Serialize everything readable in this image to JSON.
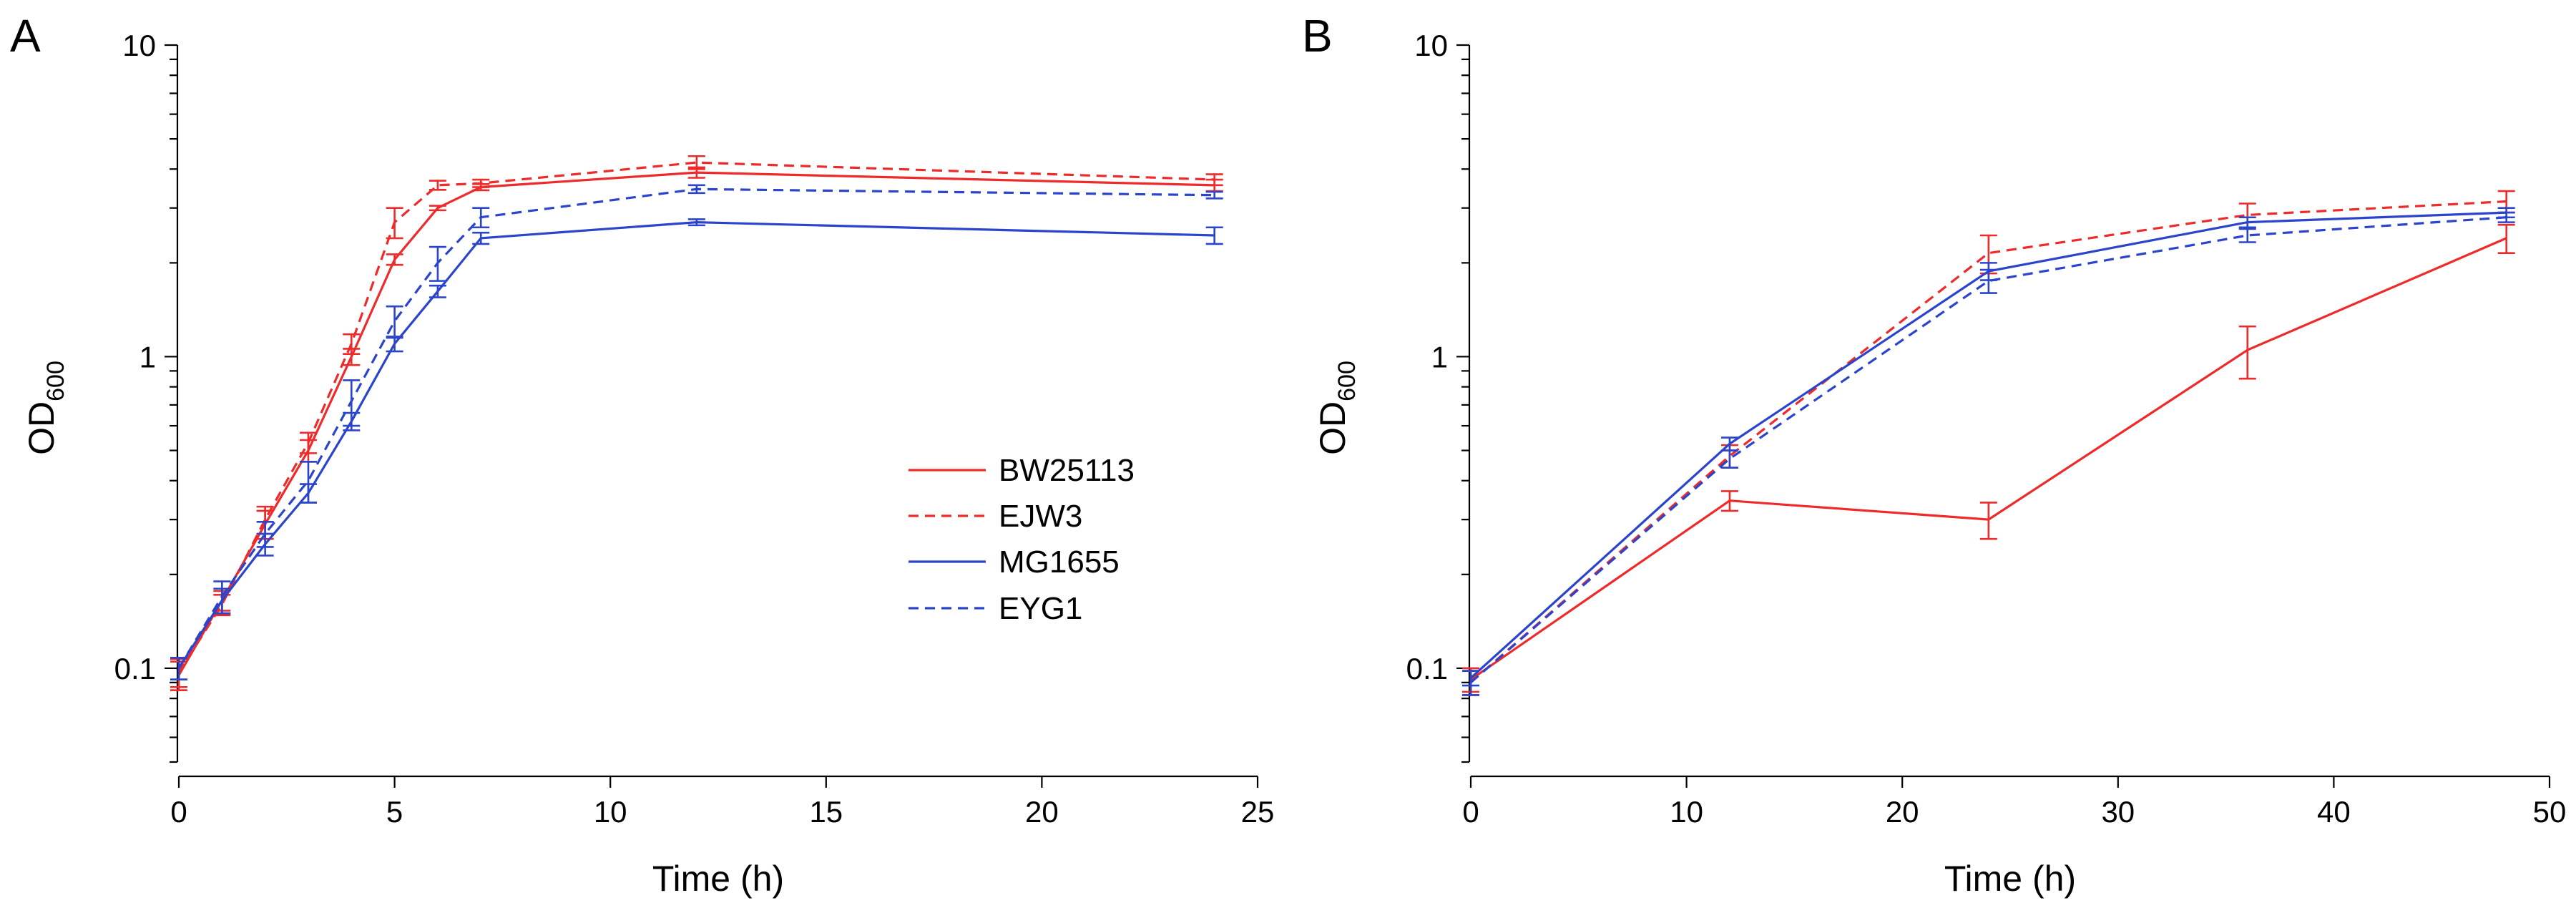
{
  "colors": {
    "red": "#ee2a2a",
    "blue": "#2a44cc"
  },
  "legend": {
    "entries": [
      {
        "name": "BW25113",
        "color": "red",
        "dash": false
      },
      {
        "name": "EJW3",
        "color": "red",
        "dash": true
      },
      {
        "name": "MG1655",
        "color": "blue",
        "dash": false
      },
      {
        "name": "EYG1",
        "color": "blue",
        "dash": true
      }
    ]
  },
  "chart_data": [
    {
      "type": "line",
      "panel": "A",
      "title": "",
      "xlabel": "Time (h)",
      "ylabel": "OD",
      "ylabel_subscript": "600",
      "xlim": [
        0,
        25
      ],
      "ylim": [
        0.05,
        10
      ],
      "yscale": "log",
      "xticks": [
        0,
        5,
        10,
        15,
        20,
        25
      ],
      "yticks": [
        0.1,
        1,
        10
      ],
      "ytick_labels": [
        "0.1",
        "1",
        "10"
      ],
      "grid": false,
      "legend_position": "center-right",
      "series": [
        {
          "name": "BW25113",
          "color": "red",
          "dash": false,
          "x": [
            0,
            1,
            2,
            3,
            4,
            5,
            6,
            7,
            12,
            24
          ],
          "y": [
            0.095,
            0.165,
            0.29,
            0.5,
            1.0,
            2.05,
            3.0,
            3.5,
            3.9,
            3.55
          ],
          "err": [
            0.01,
            0.012,
            0.03,
            0.04,
            0.06,
            0.08,
            0.05,
            0.08,
            0.15,
            0.15
          ]
        },
        {
          "name": "EJW3",
          "color": "red",
          "dash": true,
          "x": [
            0,
            1,
            2,
            3,
            4,
            5,
            6,
            7,
            12,
            24
          ],
          "y": [
            0.097,
            0.16,
            0.3,
            0.53,
            1.1,
            2.7,
            3.55,
            3.6,
            4.2,
            3.7
          ],
          "err": [
            0.01,
            0.012,
            0.03,
            0.04,
            0.08,
            0.3,
            0.12,
            0.1,
            0.2,
            0.15
          ]
        },
        {
          "name": "MG1655",
          "color": "blue",
          "dash": false,
          "x": [
            0,
            1,
            2,
            3,
            4,
            5,
            6,
            7,
            12,
            24
          ],
          "y": [
            0.1,
            0.165,
            0.25,
            0.365,
            0.62,
            1.1,
            1.62,
            2.4,
            2.7,
            2.45
          ],
          "err": [
            0.008,
            0.015,
            0.02,
            0.025,
            0.04,
            0.06,
            0.07,
            0.1,
            0.06,
            0.15
          ]
        },
        {
          "name": "EYG1",
          "color": "blue",
          "dash": true,
          "x": [
            0,
            1,
            2,
            3,
            4,
            5,
            6,
            7,
            12,
            24
          ],
          "y": [
            0.1,
            0.17,
            0.27,
            0.4,
            0.72,
            1.3,
            2.0,
            2.8,
            3.45,
            3.3
          ],
          "err": [
            0.008,
            0.02,
            0.025,
            0.06,
            0.12,
            0.15,
            0.25,
            0.2,
            0.1,
            0.08
          ]
        }
      ]
    },
    {
      "type": "line",
      "panel": "B",
      "title": "",
      "xlabel": "Time (h)",
      "ylabel": "OD",
      "ylabel_subscript": "600",
      "xlim": [
        0,
        50
      ],
      "ylim": [
        0.05,
        10
      ],
      "yscale": "log",
      "xticks": [
        0,
        10,
        20,
        30,
        40,
        50
      ],
      "yticks": [
        0.1,
        1,
        10
      ],
      "ytick_labels": [
        "0.1",
        "1",
        "10"
      ],
      "grid": false,
      "series": [
        {
          "name": "BW25113",
          "color": "red",
          "dash": false,
          "x": [
            0,
            12,
            24,
            36,
            48
          ],
          "y": [
            0.092,
            0.345,
            0.3,
            1.05,
            2.4
          ],
          "err": [
            0.008,
            0.025,
            0.04,
            0.2,
            0.25
          ]
        },
        {
          "name": "EJW3",
          "color": "red",
          "dash": true,
          "x": [
            0,
            12,
            24,
            36,
            48
          ],
          "y": [
            0.09,
            0.48,
            2.15,
            2.85,
            3.15
          ],
          "err": [
            0.008,
            0.04,
            0.3,
            0.25,
            0.25
          ]
        },
        {
          "name": "MG1655",
          "color": "blue",
          "dash": false,
          "x": [
            0,
            12,
            24,
            36,
            48
          ],
          "y": [
            0.093,
            0.525,
            1.88,
            2.7,
            2.9
          ],
          "err": [
            0.005,
            0.025,
            0.12,
            0.1,
            0.1
          ]
        },
        {
          "name": "EYG1",
          "color": "blue",
          "dash": true,
          "x": [
            0,
            12,
            24,
            36,
            48
          ],
          "y": [
            0.09,
            0.47,
            1.75,
            2.45,
            2.8
          ],
          "err": [
            0.008,
            0.03,
            0.15,
            0.12,
            0.1
          ]
        }
      ]
    }
  ]
}
